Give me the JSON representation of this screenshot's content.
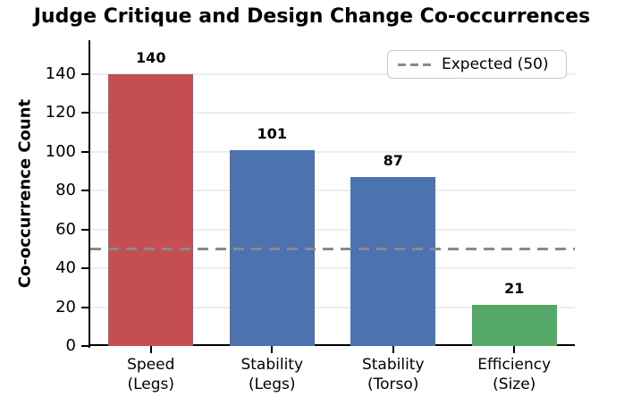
{
  "title": "Judge Critique and Design Change Co-occurrences",
  "chart_data": {
    "type": "bar",
    "title": "Judge Critique and Design Change Co-occurrences",
    "categories": [
      "Speed\n(Legs)",
      "Stability\n(Legs)",
      "Stability\n(Torso)",
      "Efficiency\n(Size)"
    ],
    "values": [
      140,
      101,
      87,
      21
    ],
    "bar_colors": [
      "#c44e52",
      "#4c72b0",
      "#4c72b0",
      "#55a868"
    ],
    "value_labels": [
      "140",
      "101",
      "87",
      "21"
    ],
    "xlabel": "",
    "ylabel": "Co-occurrence Count",
    "yticks": [
      0,
      20,
      40,
      60,
      80,
      100,
      120,
      140
    ],
    "ylim": [
      0,
      157.5
    ],
    "grid": true,
    "grid_color": "#ededed",
    "reference_line": {
      "value": 50,
      "color": "#8a8a8a",
      "style": "dashed"
    },
    "legend": {
      "position": "upper right",
      "entries": [
        {
          "label": "Expected (50)",
          "marker": "dashed-line",
          "color": "#8a8a8a"
        }
      ]
    }
  }
}
